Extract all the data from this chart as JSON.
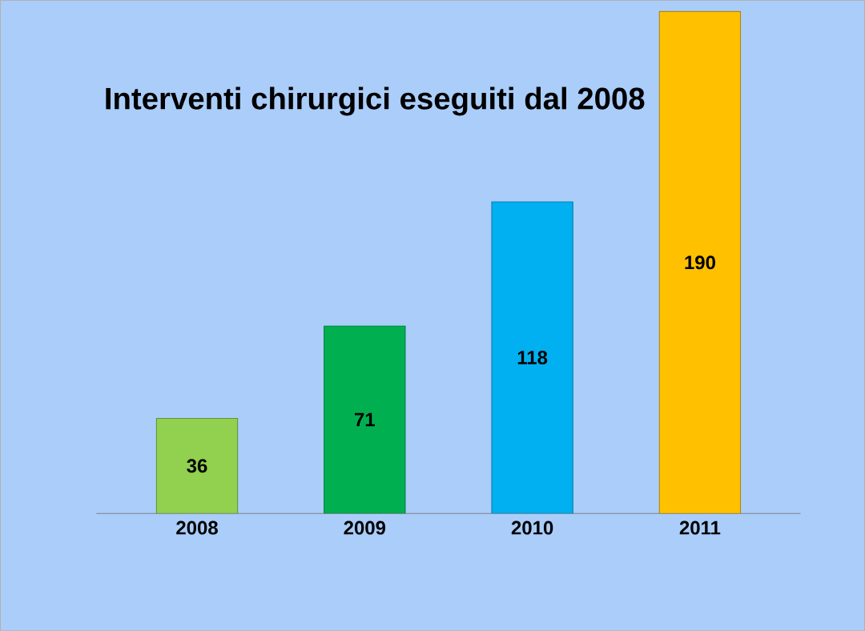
{
  "chart_data": {
    "type": "bar",
    "title": "Interventi chirurgici eseguiti dal 2008",
    "categories": [
      "2008",
      "2009",
      "2010",
      "2011"
    ],
    "values": [
      36,
      71,
      118,
      190
    ],
    "colors": [
      "#92d050",
      "#00b050",
      "#00b0f0",
      "#ffc000"
    ],
    "data_labels": true
  }
}
